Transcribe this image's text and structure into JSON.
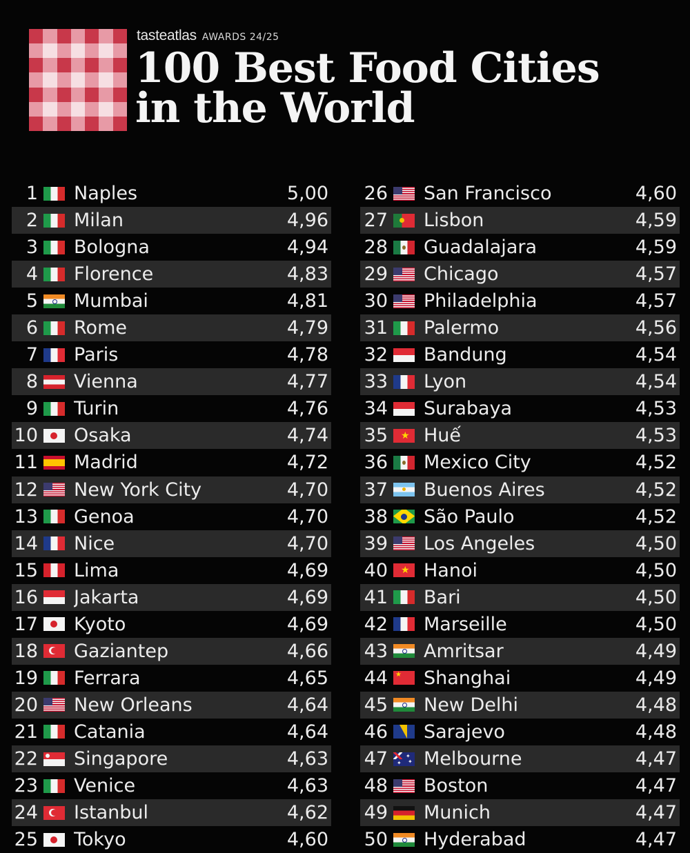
{
  "header": {
    "brand": "tasteatlas",
    "awards": "AWARDS 24/25",
    "title_line1": "100 Best Food Cities",
    "title_line2": "in the World"
  },
  "colors": {
    "background": "#050505",
    "row_alt": "#2a2a2a",
    "logo_red": "#c8384a",
    "logo_pink": "#e79aa6",
    "logo_light": "#f6dfe3"
  },
  "rankings_left": [
    {
      "rank": "1",
      "flag": "italy-flag",
      "city": "Naples",
      "score": "5,00"
    },
    {
      "rank": "2",
      "flag": "italy-flag",
      "city": "Milan",
      "score": "4,96"
    },
    {
      "rank": "3",
      "flag": "italy-flag",
      "city": "Bologna",
      "score": "4,94"
    },
    {
      "rank": "4",
      "flag": "italy-flag",
      "city": "Florence",
      "score": "4,83"
    },
    {
      "rank": "5",
      "flag": "india-flag",
      "city": "Mumbai",
      "score": "4,81"
    },
    {
      "rank": "6",
      "flag": "italy-flag",
      "city": "Rome",
      "score": "4,79"
    },
    {
      "rank": "7",
      "flag": "france-flag",
      "city": "Paris",
      "score": "4,78"
    },
    {
      "rank": "8",
      "flag": "austria-flag",
      "city": "Vienna",
      "score": "4,77"
    },
    {
      "rank": "9",
      "flag": "italy-flag",
      "city": "Turin",
      "score": "4,76"
    },
    {
      "rank": "10",
      "flag": "japan-flag",
      "city": "Osaka",
      "score": "4,74"
    },
    {
      "rank": "11",
      "flag": "spain-flag",
      "city": "Madrid",
      "score": "4,72"
    },
    {
      "rank": "12",
      "flag": "usa-flag",
      "city": "New York City",
      "score": "4,70"
    },
    {
      "rank": "13",
      "flag": "italy-flag",
      "city": "Genoa",
      "score": "4,70"
    },
    {
      "rank": "14",
      "flag": "france-flag",
      "city": "Nice",
      "score": "4,70"
    },
    {
      "rank": "15",
      "flag": "peru-flag",
      "city": "Lima",
      "score": "4,69"
    },
    {
      "rank": "16",
      "flag": "indonesia-flag",
      "city": "Jakarta",
      "score": "4,69"
    },
    {
      "rank": "17",
      "flag": "japan-flag",
      "city": "Kyoto",
      "score": "4,69"
    },
    {
      "rank": "18",
      "flag": "turkey-flag",
      "city": "Gaziantep",
      "score": "4,66"
    },
    {
      "rank": "19",
      "flag": "italy-flag",
      "city": "Ferrara",
      "score": "4,65"
    },
    {
      "rank": "20",
      "flag": "usa-flag",
      "city": "New Orleans",
      "score": "4,64"
    },
    {
      "rank": "21",
      "flag": "italy-flag",
      "city": "Catania",
      "score": "4,64"
    },
    {
      "rank": "22",
      "flag": "singapore-flag",
      "city": "Singapore",
      "score": "4,63"
    },
    {
      "rank": "23",
      "flag": "italy-flag",
      "city": "Venice",
      "score": "4,63"
    },
    {
      "rank": "24",
      "flag": "turkey-flag",
      "city": "Istanbul",
      "score": "4,62"
    },
    {
      "rank": "25",
      "flag": "japan-flag",
      "city": "Tokyo",
      "score": "4,60"
    }
  ],
  "rankings_right": [
    {
      "rank": "26",
      "flag": "usa-flag",
      "city": "San Francisco",
      "score": "4,60"
    },
    {
      "rank": "27",
      "flag": "portugal-flag",
      "city": "Lisbon",
      "score": "4,59"
    },
    {
      "rank": "28",
      "flag": "mexico-flag",
      "city": "Guadalajara",
      "score": "4,59"
    },
    {
      "rank": "29",
      "flag": "usa-flag",
      "city": "Chicago",
      "score": "4,57"
    },
    {
      "rank": "30",
      "flag": "usa-flag",
      "city": "Philadelphia",
      "score": "4,57"
    },
    {
      "rank": "31",
      "flag": "italy-flag",
      "city": "Palermo",
      "score": "4,56"
    },
    {
      "rank": "32",
      "flag": "indonesia-flag",
      "city": "Bandung",
      "score": "4,54"
    },
    {
      "rank": "33",
      "flag": "france-flag",
      "city": "Lyon",
      "score": "4,54"
    },
    {
      "rank": "34",
      "flag": "indonesia-flag",
      "city": "Surabaya",
      "score": "4,53"
    },
    {
      "rank": "35",
      "flag": "vietnam-flag",
      "city": "Huế",
      "score": "4,53"
    },
    {
      "rank": "36",
      "flag": "mexico-flag",
      "city": "Mexico City",
      "score": "4,52"
    },
    {
      "rank": "37",
      "flag": "argentina-flag",
      "city": "Buenos Aires",
      "score": "4,52"
    },
    {
      "rank": "38",
      "flag": "brazil-flag",
      "city": "São Paulo",
      "score": "4,52"
    },
    {
      "rank": "39",
      "flag": "usa-flag",
      "city": "Los Angeles",
      "score": "4,50"
    },
    {
      "rank": "40",
      "flag": "vietnam-flag",
      "city": "Hanoi",
      "score": "4,50"
    },
    {
      "rank": "41",
      "flag": "italy-flag",
      "city": "Bari",
      "score": "4,50"
    },
    {
      "rank": "42",
      "flag": "france-flag",
      "city": "Marseille",
      "score": "4,50"
    },
    {
      "rank": "43",
      "flag": "india-flag",
      "city": "Amritsar",
      "score": "4,49"
    },
    {
      "rank": "44",
      "flag": "china-flag",
      "city": "Shanghai",
      "score": "4,49"
    },
    {
      "rank": "45",
      "flag": "india-flag",
      "city": "New Delhi",
      "score": "4,48"
    },
    {
      "rank": "46",
      "flag": "bosnia-flag",
      "city": "Sarajevo",
      "score": "4,48"
    },
    {
      "rank": "47",
      "flag": "australia-flag",
      "city": "Melbourne",
      "score": "4,47"
    },
    {
      "rank": "48",
      "flag": "usa-flag",
      "city": "Boston",
      "score": "4,47"
    },
    {
      "rank": "49",
      "flag": "germany-flag",
      "city": "Munich",
      "score": "4,47"
    },
    {
      "rank": "50",
      "flag": "india-flag",
      "city": "Hyderabad",
      "score": "4,47"
    }
  ]
}
